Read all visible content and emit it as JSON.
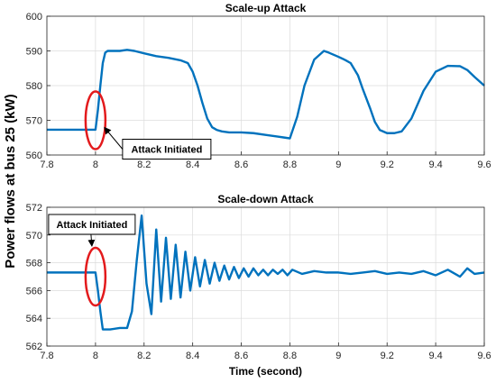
{
  "chart_data": [
    {
      "type": "line",
      "title": "Scale-up Attack",
      "xlim": [
        7.8,
        9.6
      ],
      "ylim": [
        560,
        600
      ],
      "xticks": [
        "7.8",
        "8",
        "8.2",
        "8.4",
        "8.6",
        "8.8",
        "9",
        "9.2",
        "9.4",
        "9.6"
      ],
      "yticks": [
        "560",
        "570",
        "580",
        "590",
        "600"
      ],
      "grid": true,
      "line_color": "#0072BD",
      "annotation": {
        "text": "Attack Initiated",
        "x": 8.0,
        "y": 570,
        "color": "#e31a1c"
      },
      "series": [
        {
          "x": [
            7.8,
            7.9,
            7.98,
            8.0,
            8.01,
            8.02,
            8.03,
            8.04,
            8.05,
            8.08,
            8.1,
            8.13,
            8.16,
            8.2,
            8.25,
            8.3,
            8.35,
            8.38,
            8.4,
            8.42,
            8.44,
            8.46,
            8.48,
            8.5,
            8.52,
            8.55,
            8.6,
            8.65,
            8.7,
            8.75,
            8.78,
            8.8,
            8.83,
            8.86,
            8.9,
            8.94,
            8.96,
            9.0,
            9.03,
            9.05,
            9.08,
            9.1,
            9.13,
            9.15,
            9.17,
            9.2,
            9.23,
            9.26,
            9.3,
            9.35,
            9.4,
            9.45,
            9.5,
            9.53,
            9.56,
            9.6
          ],
          "y": [
            567.3,
            567.3,
            567.3,
            567.3,
            573,
            580,
            586.5,
            589.5,
            590,
            590,
            590,
            590.3,
            590,
            589.3,
            588.5,
            588,
            587.3,
            586.5,
            584,
            580,
            575,
            570.5,
            568,
            567.2,
            566.8,
            566.5,
            566.5,
            566.3,
            565.8,
            565.3,
            565,
            564.8,
            571,
            580,
            587.5,
            590,
            589.5,
            588.3,
            587.3,
            586.5,
            583,
            579,
            573.5,
            569.5,
            567.2,
            566.3,
            566.3,
            566.8,
            570.5,
            578.5,
            584,
            585.7,
            585.6,
            584.5,
            582.5,
            580
          ]
        }
      ]
    },
    {
      "type": "line",
      "title": "Scale-down Attack",
      "xlabel": "Time (second)",
      "xlim": [
        7.8,
        9.6
      ],
      "ylim": [
        562,
        572
      ],
      "xticks": [
        "7.8",
        "8",
        "8.2",
        "8.4",
        "8.6",
        "8.8",
        "9",
        "9.2",
        "9.4",
        "9.6"
      ],
      "yticks": [
        "562",
        "564",
        "566",
        "568",
        "570",
        "572"
      ],
      "grid": true,
      "line_color": "#0072BD",
      "annotation": {
        "text": "Attack Initiated",
        "x": 8.0,
        "y": 567,
        "color": "#e31a1c"
      },
      "series": [
        {
          "x": [
            7.8,
            7.9,
            7.98,
            8.0,
            8.01,
            8.02,
            8.03,
            8.06,
            8.1,
            8.13,
            8.15,
            8.17,
            8.19,
            8.21,
            8.23,
            8.25,
            8.27,
            8.29,
            8.31,
            8.33,
            8.35,
            8.37,
            8.39,
            8.41,
            8.43,
            8.45,
            8.47,
            8.49,
            8.51,
            8.53,
            8.55,
            8.57,
            8.59,
            8.61,
            8.63,
            8.65,
            8.67,
            8.69,
            8.71,
            8.73,
            8.75,
            8.77,
            8.79,
            8.81,
            8.85,
            8.9,
            8.95,
            9.0,
            9.05,
            9.1,
            9.15,
            9.2,
            9.25,
            9.3,
            9.35,
            9.4,
            9.45,
            9.5,
            9.53,
            9.56,
            9.6
          ],
          "y": [
            567.3,
            567.3,
            567.3,
            567.3,
            566,
            564.5,
            563.2,
            563.2,
            563.3,
            563.3,
            564.5,
            568.2,
            571.4,
            566.5,
            564.3,
            570.4,
            565.2,
            569.8,
            565.4,
            569.3,
            565.5,
            568.8,
            566,
            568.4,
            566.3,
            568.2,
            566.5,
            568,
            566.7,
            567.8,
            566.8,
            567.7,
            566.9,
            567.6,
            567,
            567.6,
            567.1,
            567.5,
            567.1,
            567.5,
            567.2,
            567.5,
            567.1,
            567.5,
            567.2,
            567.4,
            567.3,
            567.3,
            567.2,
            567.3,
            567.4,
            567.2,
            567.3,
            567.2,
            567.4,
            567.1,
            567.5,
            567.0,
            567.6,
            567.2,
            567.3
          ]
        }
      ]
    }
  ],
  "shared_ylabel": "Power flows at bus 25 (kW)"
}
